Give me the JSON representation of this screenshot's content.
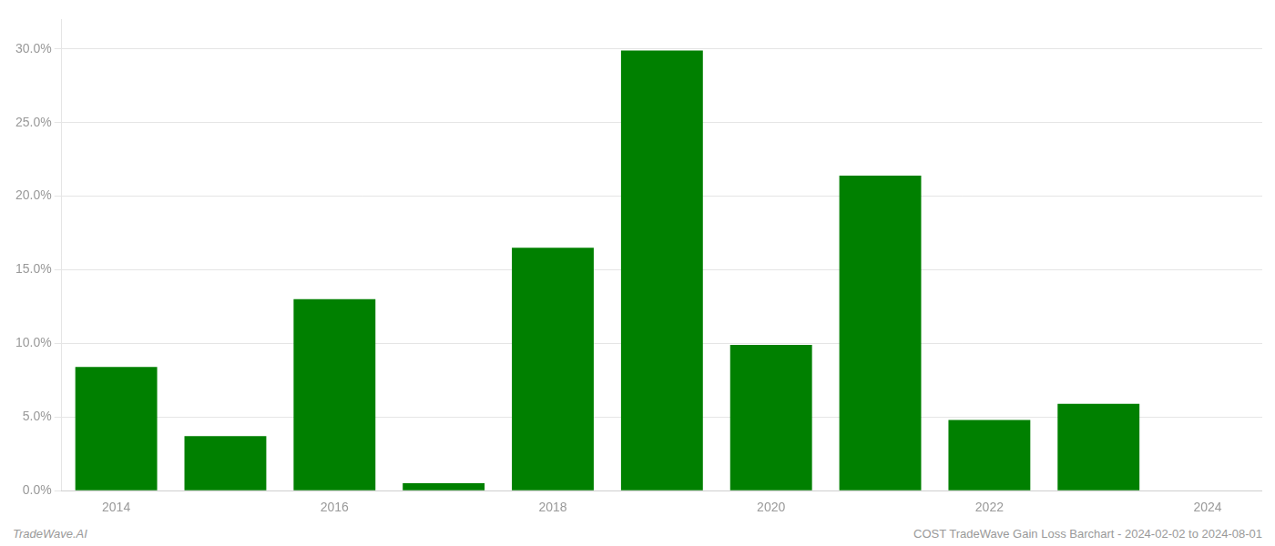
{
  "chart_data": {
    "type": "bar",
    "categories": [
      "2014",
      null,
      "2016",
      null,
      "2018",
      null,
      "2020",
      null,
      "2022",
      null,
      "2024"
    ],
    "values": [
      0.084,
      0.037,
      0.13,
      0.005,
      0.165,
      0.299,
      0.099,
      0.214,
      0.048,
      0.059,
      0.0
    ],
    "color": "#008000",
    "ylim": [
      0.0,
      0.32
    ],
    "yticks": [
      {
        "value": 0.0,
        "label": "0.0%"
      },
      {
        "value": 0.05,
        "label": "5.0%"
      },
      {
        "value": 0.1,
        "label": "10.0%"
      },
      {
        "value": 0.15,
        "label": "15.0%"
      },
      {
        "value": 0.2,
        "label": "20.0%"
      },
      {
        "value": 0.25,
        "label": "25.0%"
      },
      {
        "value": 0.3,
        "label": "30.0%"
      }
    ],
    "grid": true,
    "annotations": [
      "TradeWave.AI",
      "COST TradeWave Gain Loss Barchart - 2024-02-02 to 2024-08-01"
    ]
  }
}
